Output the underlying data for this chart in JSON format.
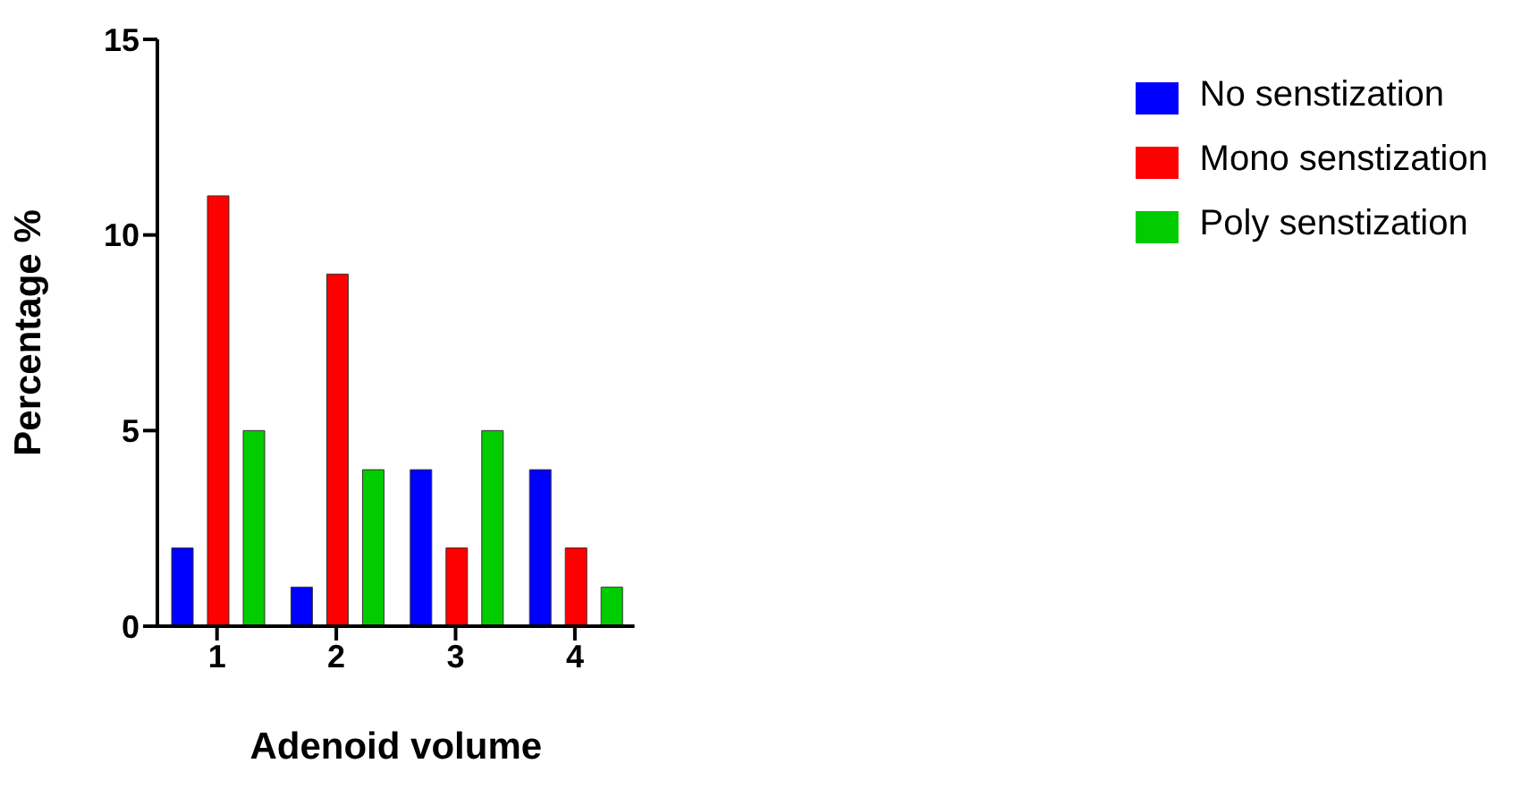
{
  "chart_data": {
    "type": "bar",
    "xlabel": "Adenoid volume",
    "ylabel": "Percentage %",
    "categories": [
      "1",
      "2",
      "3",
      "4"
    ],
    "series": [
      {
        "name": "No senstization",
        "color": "#0000ff",
        "values": [
          2,
          1,
          4,
          4
        ]
      },
      {
        "name": "Mono senstization",
        "color": "#ff0000",
        "values": [
          11,
          9,
          2,
          2
        ]
      },
      {
        "name": "Poly senstization",
        "color": "#00cc00",
        "values": [
          5,
          4,
          5,
          1
        ]
      }
    ],
    "ylim": [
      0,
      15
    ],
    "yticks": [
      0,
      5,
      10,
      15
    ],
    "grid": false,
    "legend": "top right"
  }
}
